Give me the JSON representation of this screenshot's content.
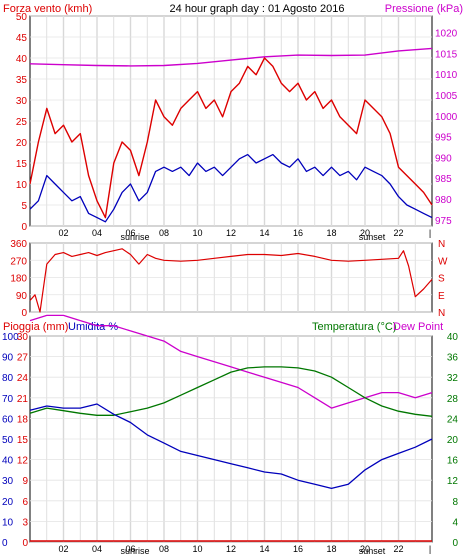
{
  "chart_data": [
    {
      "type": "line",
      "title": "24 hour graph day : 01 Agosto 2016",
      "left_label": "Forza vento (kmh)",
      "right_label": "Pressione (kPa)",
      "x_ticks": [
        "02",
        "04",
        "06",
        "08",
        "10",
        "12",
        "14",
        "16",
        "18",
        "20",
        "22"
      ],
      "sunrise_label": "sunrise",
      "sunset_label": "sunset",
      "xlim": [
        0,
        24
      ],
      "left_ylim": [
        0,
        50
      ],
      "left_ticks": [
        0,
        5,
        10,
        15,
        20,
        25,
        30,
        35,
        40,
        45,
        50
      ],
      "right_ylim": [
        973.5,
        1024
      ],
      "right_ticks": [
        975,
        980,
        985,
        990,
        995,
        1000,
        1005,
        1010,
        1015,
        1020
      ],
      "colors": {
        "gust": "#dd0000",
        "average": "#0000bb",
        "pressure": "#cc00cc"
      },
      "gust_x": [
        0,
        0.5,
        1,
        1.5,
        2,
        2.5,
        3,
        3.5,
        4,
        4.5,
        5,
        5.5,
        6,
        6.5,
        7,
        7.5,
        8,
        8.5,
        9,
        9.5,
        10,
        10.5,
        11,
        11.5,
        12,
        12.5,
        13,
        13.5,
        14,
        14.5,
        15,
        15.5,
        16,
        16.5,
        17,
        17.5,
        18,
        18.5,
        19,
        19.5,
        20,
        20.5,
        21,
        21.5,
        22,
        22.5,
        23,
        23.5,
        24
      ],
      "gust_y": [
        10,
        20,
        28,
        22,
        24,
        20,
        22,
        12,
        6,
        2,
        15,
        20,
        18,
        12,
        20,
        30,
        26,
        24,
        28,
        30,
        32,
        28,
        30,
        26,
        32,
        34,
        38,
        36,
        40,
        38,
        34,
        32,
        34,
        30,
        32,
        28,
        30,
        26,
        24,
        22,
        30,
        28,
        26,
        22,
        14,
        12,
        10,
        8,
        5
      ],
      "avg_x": [
        0,
        0.5,
        1,
        1.5,
        2,
        2.5,
        3,
        3.5,
        4,
        4.5,
        5,
        5.5,
        6,
        6.5,
        7,
        7.5,
        8,
        8.5,
        9,
        9.5,
        10,
        10.5,
        11,
        11.5,
        12,
        12.5,
        13,
        13.5,
        14,
        14.5,
        15,
        15.5,
        16,
        16.5,
        17,
        17.5,
        18,
        18.5,
        19,
        19.5,
        20,
        20.5,
        21,
        21.5,
        22,
        22.5,
        23,
        23.5,
        24
      ],
      "avg_y": [
        4,
        6,
        12,
        10,
        8,
        6,
        7,
        3,
        2,
        1,
        4,
        8,
        10,
        6,
        8,
        13,
        14,
        13,
        14,
        12,
        15,
        13,
        14,
        12,
        14,
        16,
        17,
        15,
        16,
        17,
        15,
        14,
        16,
        13,
        14,
        12,
        14,
        12,
        13,
        11,
        14,
        13,
        12,
        10,
        7,
        5,
        4,
        3,
        2
      ],
      "pressure_x": [
        0,
        2,
        4,
        6,
        8,
        10,
        12,
        14,
        16,
        18,
        20,
        22,
        24
      ],
      "pressure_y": [
        1012.5,
        1012.3,
        1012.1,
        1012.0,
        1012.1,
        1012.6,
        1013.4,
        1014.2,
        1014.6,
        1014.5,
        1014.6,
        1015.6,
        1016.2
      ]
    },
    {
      "type": "line",
      "right_letters": [
        "N",
        "W",
        "S",
        "E",
        "N"
      ],
      "xlim": [
        0,
        24
      ],
      "ylim": [
        0,
        360
      ],
      "left_ticks": [
        0,
        90,
        180,
        270,
        360
      ],
      "colors": {
        "direction": "#dd0000"
      },
      "x": [
        0,
        0.3,
        0.6,
        1,
        1.5,
        2,
        2.5,
        3,
        3.5,
        4,
        4.5,
        5,
        5.5,
        6,
        6.5,
        7,
        7.5,
        8,
        9,
        10,
        11,
        12,
        13,
        14,
        15,
        16,
        17,
        18,
        19,
        20,
        21,
        22,
        22.3,
        22.6,
        23,
        23.5,
        24
      ],
      "y": [
        60,
        90,
        0,
        250,
        300,
        310,
        290,
        300,
        310,
        295,
        310,
        320,
        330,
        300,
        250,
        300,
        280,
        270,
        265,
        270,
        280,
        290,
        300,
        300,
        295,
        305,
        290,
        270,
        265,
        270,
        275,
        280,
        320,
        240,
        80,
        120,
        170
      ]
    },
    {
      "type": "line",
      "labels": {
        "rain": "Pioggia (mm)",
        "humidity": "Umidita %",
        "temperature": "Temperatura (°C)",
        "dewpoint": "Dew Point"
      },
      "xlim": [
        0,
        24
      ],
      "left_ticks": [
        0,
        10,
        20,
        30,
        40,
        50,
        60,
        70,
        80,
        90,
        100
      ],
      "rain_ticks": [
        0,
        3,
        6,
        9,
        12,
        15,
        18,
        21,
        24,
        27,
        30
      ],
      "right_ticks": [
        0,
        4,
        8,
        12,
        16,
        20,
        24,
        28,
        32,
        36,
        40
      ],
      "colors": {
        "rain": "#dd0000",
        "humidity": "#0000bb",
        "temperature": "#007700",
        "dewpoint": "#cc00cc"
      },
      "humidity_x": [
        0,
        1,
        2,
        3,
        4,
        5,
        6,
        7,
        8,
        9,
        10,
        11,
        12,
        13,
        14,
        15,
        16,
        17,
        18,
        19,
        20,
        21,
        22,
        23,
        24
      ],
      "humidity_y": [
        64,
        66,
        65,
        65,
        67,
        62,
        58,
        52,
        48,
        44,
        42,
        40,
        38,
        36,
        34,
        33,
        30,
        28,
        26,
        28,
        35,
        40,
        43,
        46,
        50
      ],
      "temperature_x": [
        0,
        1,
        2,
        3,
        4,
        5,
        6,
        7,
        8,
        9,
        10,
        11,
        12,
        13,
        14,
        15,
        16,
        17,
        18,
        19,
        20,
        21,
        22,
        23,
        24
      ],
      "temperature_y": [
        25,
        26,
        25.5,
        25,
        24.6,
        24.6,
        25.3,
        26,
        27,
        28.5,
        30,
        31.5,
        33,
        33.8,
        34,
        34,
        33.8,
        33.2,
        32,
        30,
        28,
        26.4,
        25.4,
        24.8,
        24.4
      ],
      "dewpoint_x": [
        0,
        1,
        2,
        3,
        4,
        5,
        6,
        7,
        8,
        9,
        10,
        11,
        12,
        13,
        14,
        15,
        16,
        17,
        18,
        19,
        20,
        21,
        22,
        23,
        24
      ],
      "dewpoint_y": [
        43,
        44,
        44,
        43,
        42,
        42,
        41,
        40,
        39,
        37,
        36,
        35,
        34,
        33,
        32,
        31,
        30,
        28,
        26,
        27,
        28,
        29,
        29,
        28,
        29
      ],
      "rain_y": 0
    }
  ]
}
